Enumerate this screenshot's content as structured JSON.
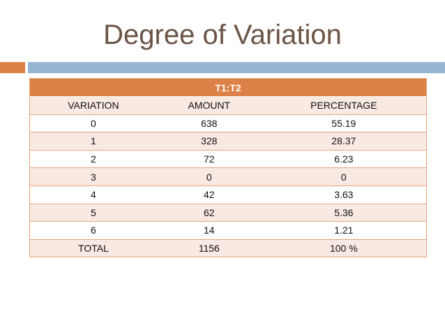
{
  "title": "Degree of Variation",
  "colors": {
    "accent_orange": "#dc8148",
    "accent_blue": "#94b6d2",
    "title": "#6b5446"
  },
  "table": {
    "caption": "T1:T2",
    "headers": [
      "VARIATION",
      "AMOUNT",
      "PERCENTAGE"
    ],
    "rows": [
      [
        "0",
        "638",
        "55.19"
      ],
      [
        "1",
        "328",
        "28.37"
      ],
      [
        "2",
        "72",
        "6.23"
      ],
      [
        "3",
        "0",
        "0"
      ],
      [
        "4",
        "42",
        "3.63"
      ],
      [
        "5",
        "62",
        "5.36"
      ],
      [
        "6",
        "14",
        "1.21"
      ],
      [
        "TOTAL",
        "1156",
        "100 %"
      ]
    ]
  }
}
